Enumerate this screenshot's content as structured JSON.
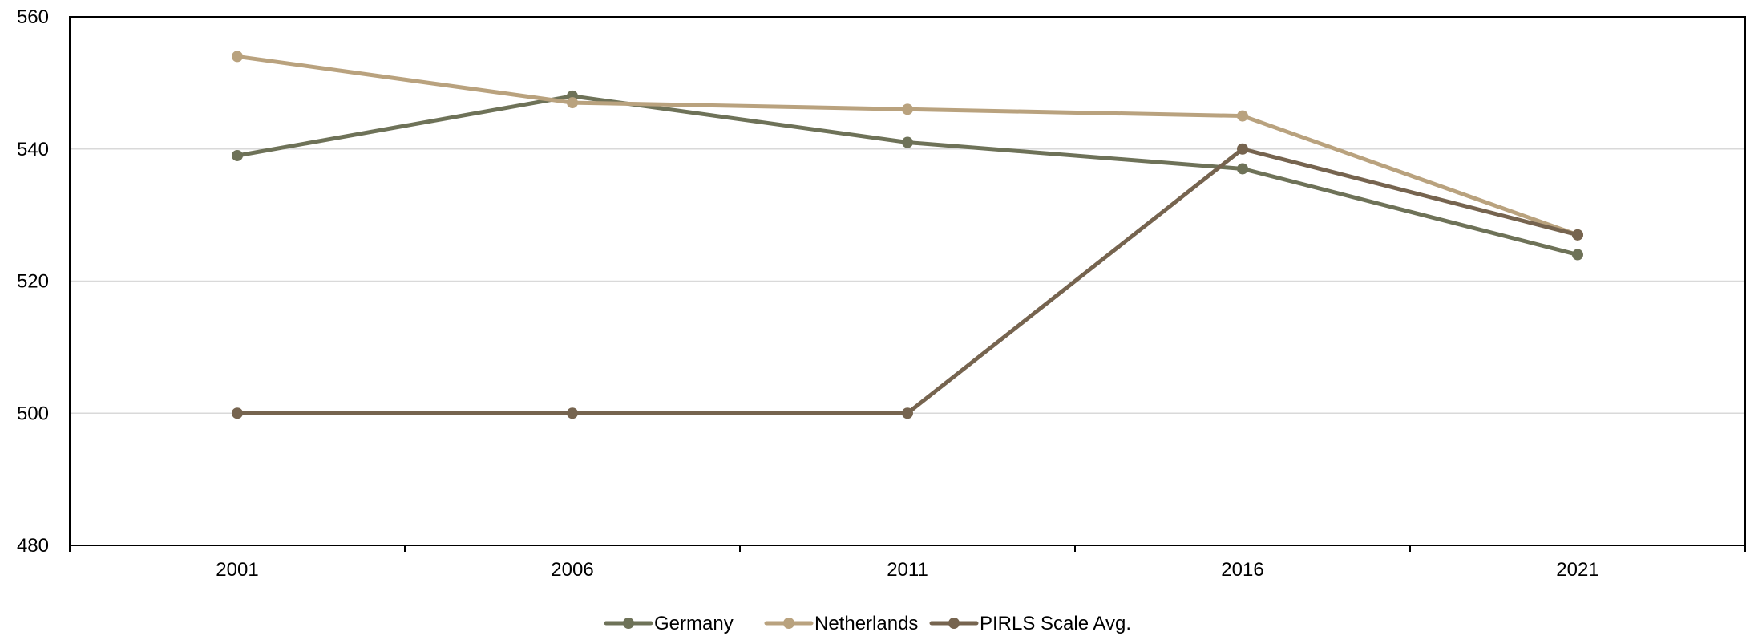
{
  "chart_data": {
    "type": "line",
    "title": "",
    "xlabel": "",
    "ylabel": "",
    "x": [
      "2001",
      "2006",
      "2011",
      "2016",
      "2021"
    ],
    "ylim": [
      480,
      560
    ],
    "yticks": [
      480,
      500,
      520,
      540,
      560
    ],
    "grid": true,
    "legend_position": "bottom-center",
    "series": [
      {
        "name": "Germany",
        "color": "#6e7258",
        "values": [
          539,
          548,
          541,
          537,
          524
        ]
      },
      {
        "name": "Netherlands",
        "color": "#b9a27e",
        "values": [
          554,
          547,
          546,
          545,
          527
        ]
      },
      {
        "name": "PIRLS Scale Avg.",
        "color": "#76644f",
        "values": [
          500,
          500,
          500,
          540,
          527
        ]
      }
    ]
  }
}
